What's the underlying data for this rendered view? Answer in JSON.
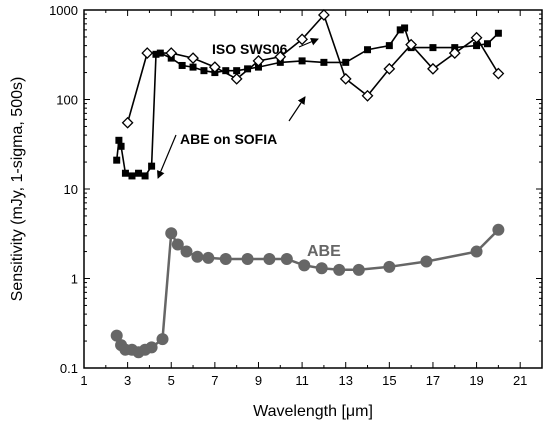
{
  "chart_data": {
    "type": "line",
    "title": "",
    "xlabel": "Wavelength [μm]",
    "ylabel": "Sensitivity (mJy, 1-sigma, 500s)",
    "xlim": [
      1,
      22
    ],
    "ylim": [
      0.1,
      1000
    ],
    "y_scale": "log",
    "x_ticks": [
      "1",
      "3",
      "5",
      "7",
      "9",
      "11",
      "13",
      "15",
      "17",
      "19",
      "21"
    ],
    "y_ticks": [
      "0.1",
      "1",
      "10",
      "100",
      "1000"
    ],
    "grid": false,
    "annotations": [
      {
        "text": "ISO SWS06",
        "points_to": "ISO SWS06"
      },
      {
        "text": "ABE on SOFIA",
        "points_to": "ABE on SOFIA"
      },
      {
        "text": "ABE",
        "points_to": "ABE"
      }
    ],
    "series": [
      {
        "name": "ISO SWS06",
        "color": "#000000",
        "marker": "open-diamond",
        "x": [
          3.0,
          3.9,
          5.0,
          6.0,
          7.0,
          8.0,
          9.0,
          10.0,
          11.0,
          12.0,
          13.0,
          14.0,
          15.0,
          16.0,
          17.0,
          18.0,
          19.0,
          20.0
        ],
        "y": [
          55,
          330,
          330,
          290,
          230,
          170,
          270,
          300,
          470,
          880,
          170,
          110,
          220,
          410,
          220,
          330,
          490,
          195
        ]
      },
      {
        "name": "ABE on SOFIA",
        "color": "#000000",
        "marker": "filled-square",
        "x": [
          2.5,
          2.6,
          2.7,
          2.9,
          3.2,
          3.5,
          3.8,
          4.1,
          4.3,
          4.5,
          5.0,
          5.5,
          6.0,
          6.5,
          7.0,
          7.5,
          8.0,
          8.5,
          9.0,
          10.0,
          11.0,
          12.0,
          13.0,
          14.0,
          15.0,
          15.5,
          15.7,
          16.0,
          17.0,
          18.0,
          19.0,
          19.5,
          20.0
        ],
        "y": [
          21,
          35,
          30,
          15,
          14,
          15,
          14,
          18,
          320,
          330,
          290,
          240,
          230,
          210,
          200,
          210,
          210,
          220,
          230,
          260,
          270,
          260,
          260,
          360,
          400,
          600,
          630,
          380,
          380,
          380,
          400,
          420,
          550
        ]
      },
      {
        "name": "ABE",
        "color": "#666666",
        "marker": "filled-circle",
        "x": [
          2.5,
          2.7,
          2.9,
          3.2,
          3.5,
          3.8,
          4.1,
          4.6,
          5.0,
          5.3,
          5.7,
          6.2,
          6.7,
          7.5,
          8.5,
          9.5,
          10.3,
          11.1,
          11.9,
          12.7,
          13.6,
          15.0,
          16.7,
          19.0,
          20.0
        ],
        "y": [
          0.23,
          0.18,
          0.16,
          0.16,
          0.15,
          0.16,
          0.17,
          0.21,
          3.2,
          2.4,
          2.0,
          1.75,
          1.7,
          1.65,
          1.65,
          1.65,
          1.65,
          1.4,
          1.3,
          1.25,
          1.25,
          1.35,
          1.55,
          2.0,
          3.5
        ]
      }
    ]
  }
}
